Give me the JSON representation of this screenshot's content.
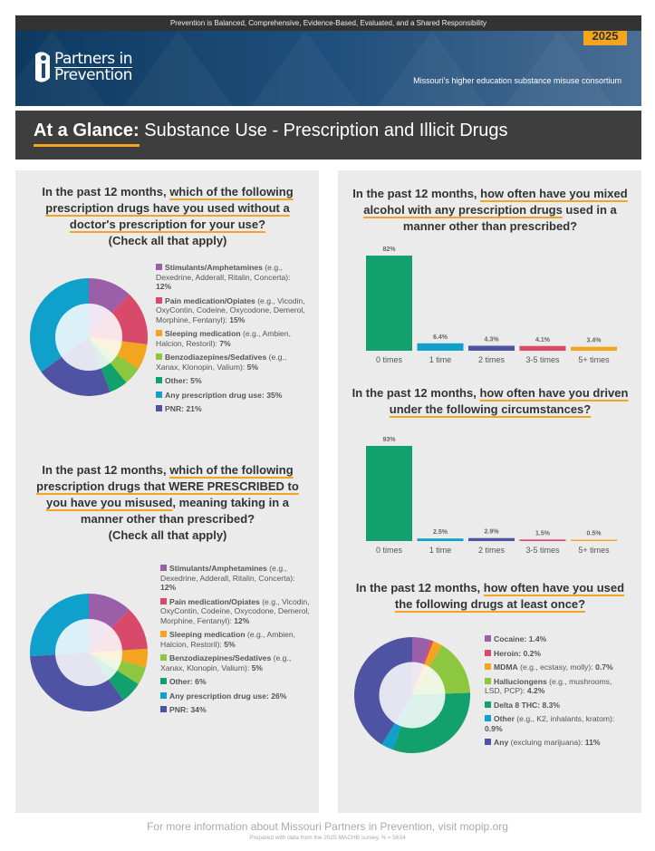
{
  "header": {
    "tagline": "Prevention is Balanced, Comprehensive, Evidence-Based, Evaluated, and a Shared Responsibility",
    "year": "2025",
    "logo_line1": "Partners in",
    "logo_line2": "Prevention",
    "subtitle": "Missouri's higher education substance misuse consortium"
  },
  "title": {
    "bold": "At a Glance:",
    "rest": " Substance Use - Prescription and Illicit Drugs"
  },
  "colors": {
    "purple": "#9b5ea8",
    "red": "#d8496a",
    "orange": "#f3a51f",
    "lime": "#8dc63f",
    "green": "#12a06c",
    "blue": "#0fa0cc",
    "indigo": "#4f53a3"
  },
  "q1": {
    "pre": "In the past 12 months, ",
    "hl": "which of the following prescription drugs have you used without a doctor's prescription for your use?",
    "post": "(Check all that apply)"
  },
  "q2": {
    "pre": "In the past 12 months, ",
    "hl": "which of the following prescription drugs that WERE PRESCRIBED to you have you misused",
    "post": ", meaning taking in a manner other than prescribed?",
    "post2": "(Check all that apply)"
  },
  "q3": {
    "pre": "In the past 12 months, ",
    "hl": "how often have you mixed alcohol with any prescription drugs",
    "post": " used in a manner other than prescribed?"
  },
  "q4": {
    "pre": "In the past 12 months, ",
    "hl": "how often have you driven under the following circumstances?"
  },
  "q5": {
    "pre": "In the past 12 months, ",
    "hl": "how often have you used the following drugs at least once?"
  },
  "chart_data": [
    {
      "type": "pie",
      "title": "Prescription drugs used without a prescription",
      "slices": [
        {
          "bold": "Stimulants/Amphetamines",
          "detail": " (e.g., Dexedrine, Adderall, Ritalin, Concerta): ",
          "value": 12,
          "label": "12%",
          "color": "#9b5ea8"
        },
        {
          "bold": "Pain medication/Opiates",
          "detail": " (e.g., Vicodin, OxyContin, Codeine, Oxycodone, Demerol, Morphine, Fentanyl): ",
          "value": 15,
          "label": "15%",
          "color": "#d8496a"
        },
        {
          "bold": "Sleeping medication",
          "detail": " (e.g., Ambien, Halcion, Restoril): ",
          "value": 7,
          "label": "7%",
          "color": "#f3a51f"
        },
        {
          "bold": "Benzodiazepines/Sedatives",
          "detail": " (e.g., Xanax, Klonopin, Valium): ",
          "value": 5,
          "label": "5%",
          "color": "#8dc63f"
        },
        {
          "bold": "Other: ",
          "detail": "",
          "value": 5,
          "label": "5%",
          "color": "#12a06c"
        },
        {
          "bold": "Any prescription drug use: ",
          "detail": "",
          "value": 35,
          "label": "35%",
          "color": "#0fa0cc"
        },
        {
          "bold": "PNR: ",
          "detail": "",
          "value": 21,
          "label": "21%",
          "color": "#4f53a3"
        }
      ],
      "draw_order": [
        0,
        1,
        2,
        3,
        4,
        6,
        5
      ]
    },
    {
      "type": "pie",
      "title": "Prescribed drugs misused",
      "slices": [
        {
          "bold": "Stimulants/Amphetamines",
          "detail": " (e.g., Dexedrine, Adderall, Ritalin, Concerta): ",
          "value": 12,
          "label": "12%",
          "color": "#9b5ea8"
        },
        {
          "bold": "Pain medication/Opiates",
          "detail": " (e.g., Vicodin, OxyContin, Codeine, Oxycodone, Demerol, Morphine, Fentanyl): ",
          "value": 12,
          "label": "12%",
          "color": "#d8496a"
        },
        {
          "bold": "Sleeping medication",
          "detail": " (e.g., Ambien, Halcion, Restoril): ",
          "value": 5,
          "label": "5%",
          "color": "#f3a51f"
        },
        {
          "bold": "Benzodiazepines/Sedatives",
          "detail": " (e.g., Xanax, Klonopin, Valium): ",
          "value": 5,
          "label": "5%",
          "color": "#8dc63f"
        },
        {
          "bold": "Other: ",
          "detail": "",
          "value": 6,
          "label": "6%",
          "color": "#12a06c"
        },
        {
          "bold": "Any prescription drug use: ",
          "detail": "",
          "value": 26,
          "label": "26%",
          "color": "#0fa0cc"
        },
        {
          "bold": "PNR: ",
          "detail": "",
          "value": 34,
          "label": "34%",
          "color": "#4f53a3"
        }
      ],
      "draw_order": [
        0,
        1,
        2,
        3,
        4,
        6,
        5
      ]
    },
    {
      "type": "bar",
      "title": "Mixed alcohol with prescription drugs",
      "categories": [
        "0 times",
        "1 time",
        "2 times",
        "3-5 times",
        "5+ times"
      ],
      "values": [
        82,
        6.4,
        4.3,
        4.1,
        3.4
      ],
      "labels": [
        "82%",
        "6.4%",
        "4.3%",
        "4.1%",
        "3.4%"
      ],
      "colors": [
        "#12a06c",
        "#0fa0cc",
        "#4f53a3",
        "#d8496a",
        "#f3a51f"
      ]
    },
    {
      "type": "bar",
      "title": "Driven under the following circumstances",
      "categories": [
        "0 times",
        "1 time",
        "2 times",
        "3-5 times",
        "5+ times"
      ],
      "values": [
        93,
        2.5,
        2.9,
        1.5,
        0.5
      ],
      "labels": [
        "93%",
        "2.5%",
        "2.9%",
        "1.5%",
        "0.5%"
      ],
      "colors": [
        "#12a06c",
        "#0fa0cc",
        "#4f53a3",
        "#d8496a",
        "#f3a51f"
      ]
    },
    {
      "type": "pie",
      "title": "Drugs used at least once",
      "slices": [
        {
          "bold": "Cocaine: ",
          "detail": "",
          "value": 1.4,
          "label": "1.4%",
          "color": "#9b5ea8"
        },
        {
          "bold": "Heroin: ",
          "detail": "",
          "value": 0.2,
          "label": "0.2%",
          "color": "#d8496a"
        },
        {
          "bold": "MDMA",
          "detail": " (e.g., ecstasy, molly): ",
          "value": 0.7,
          "label": "0.7%",
          "color": "#f3a51f"
        },
        {
          "bold": "Halluciongens",
          "detail": " (e.g., mushrooms, LSD, PCP): ",
          "value": 4.2,
          "label": "4.2%",
          "color": "#8dc63f"
        },
        {
          "bold": "Delta 8 THC: ",
          "detail": "",
          "value": 8.3,
          "label": "8.3%",
          "color": "#12a06c"
        },
        {
          "bold": "Other",
          "detail": " (e.g., K2, inhalants, kratom): ",
          "value": 0.9,
          "label": "0.9%",
          "color": "#0fa0cc"
        },
        {
          "bold": "Any",
          "detail": " (excluing marijuana): ",
          "value": 11,
          "label": "11%",
          "color": "#4f53a3"
        }
      ],
      "draw_order": [
        0,
        1,
        2,
        3,
        4,
        5,
        6
      ]
    }
  ],
  "footer": {
    "main": "For more information about Missouri Partners in Prevention, visit mopip.org",
    "sub": "Prepared with data from the 2025 MACHB survey. N = 5634"
  }
}
